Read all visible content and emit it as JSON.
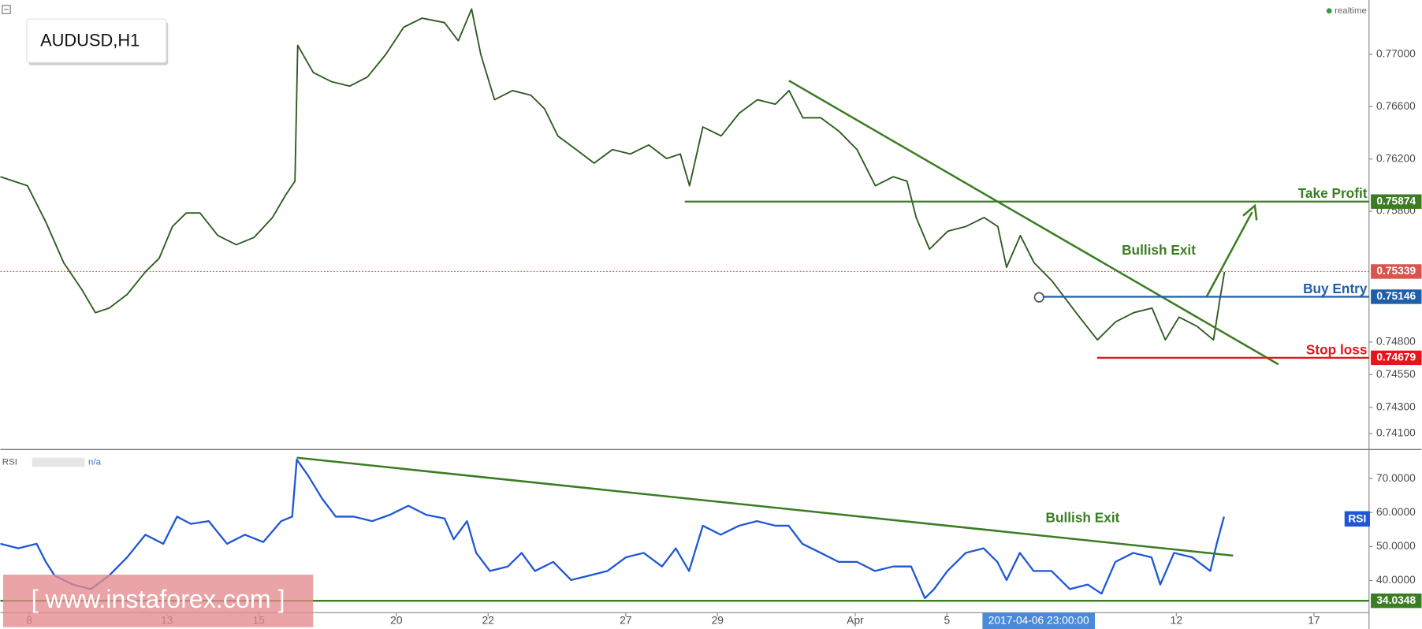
{
  "title": "AUDUSD,H1",
  "status": "realtime",
  "watermark": "[ www.instaforex.com ]",
  "chart_data": [
    {
      "type": "line",
      "color": "#2b5a1e",
      "xlim": [
        -0.63,
        29.2
      ],
      "ylim": [
        0.73984,
        0.77416
      ],
      "yticks": [
        {
          "value": 0.77,
          "label": "0.77000"
        },
        {
          "value": 0.766,
          "label": "0.76600"
        },
        {
          "value": 0.762,
          "label": "0.76200"
        },
        {
          "value": 0.758,
          "label": "0.75800"
        },
        {
          "value": 0.748,
          "label": "0.74800"
        },
        {
          "value": 0.7455,
          "label": "0.74550"
        },
        {
          "value": 0.743,
          "label": "0.74300"
        },
        {
          "value": 0.741,
          "label": "0.74100"
        }
      ],
      "x": [
        -0.63,
        -0.04,
        0.36,
        0.75,
        1.15,
        1.44,
        1.74,
        2.13,
        2.53,
        2.83,
        3.12,
        3.42,
        3.72,
        4.11,
        4.51,
        4.9,
        5.3,
        5.59,
        5.79,
        5.85,
        6.19,
        6.58,
        6.98,
        7.37,
        7.77,
        8.16,
        8.56,
        9.05,
        9.35,
        9.64,
        9.84,
        10.14,
        10.53,
        10.93,
        11.23,
        11.52,
        11.92,
        12.31,
        12.71,
        13.1,
        13.5,
        13.89,
        14.19,
        14.39,
        14.68,
        15.08,
        15.47,
        15.87,
        16.26,
        16.56,
        16.86,
        17.25,
        17.65,
        18.04,
        18.44,
        18.83,
        19.13,
        19.33,
        19.62,
        20.02,
        20.41,
        20.81,
        21.11,
        21.3,
        21.6,
        21.9,
        22.29,
        22.59,
        22.89,
        23.28,
        23.68,
        24.07,
        24.47,
        24.76,
        25.06,
        25.45,
        25.81,
        25.95,
        26.05
      ],
      "values": [
        0.76064,
        0.75995,
        0.75718,
        0.75406,
        0.75198,
        0.75024,
        0.75059,
        0.75163,
        0.75336,
        0.7544,
        0.75683,
        0.75787,
        0.75787,
        0.75614,
        0.75544,
        0.756,
        0.75752,
        0.75926,
        0.7603,
        0.77069,
        0.76861,
        0.76792,
        0.76757,
        0.76827,
        0.77,
        0.77208,
        0.77277,
        0.77243,
        0.77104,
        0.77347,
        0.77,
        0.76653,
        0.76723,
        0.76688,
        0.76584,
        0.76376,
        0.76272,
        0.76168,
        0.76272,
        0.76238,
        0.76307,
        0.76203,
        0.76238,
        0.75995,
        0.76445,
        0.76376,
        0.76549,
        0.76653,
        0.76619,
        0.76723,
        0.76515,
        0.76515,
        0.76411,
        0.76272,
        0.75995,
        0.76064,
        0.7603,
        0.75752,
        0.7551,
        0.75648,
        0.75683,
        0.75752,
        0.75683,
        0.75371,
        0.75614,
        0.75406,
        0.75267,
        0.75128,
        0.7499,
        0.74816,
        0.74955,
        0.75024,
        0.75059,
        0.74816,
        0.7499,
        0.7492,
        0.74816,
        0.75128,
        0.75336
      ],
      "levels": [
        {
          "label": "Take Profit",
          "value": 0.75874,
          "color": "#3b7d23"
        },
        {
          "label": "Buy Entry",
          "value": 0.75146,
          "color": "#1f5fa8"
        },
        {
          "label": "Stop loss",
          "value": 0.74679,
          "color": "#e8141b"
        }
      ],
      "last_price": 0.75339,
      "last_price_color": "#d9544a",
      "annotation": "Bullish Exit"
    },
    {
      "type": "line",
      "color": "#1f56d6",
      "indicator": "RSI",
      "status": "n/a",
      "xlim": [
        -0.63,
        29.2
      ],
      "ylim": [
        30.8,
        78.27
      ],
      "xticks": [
        {
          "value": 0,
          "label": "8"
        },
        {
          "value": 3,
          "label": "13"
        },
        {
          "value": 5,
          "label": "15"
        },
        {
          "value": 8,
          "label": "20"
        },
        {
          "value": 10,
          "label": "22"
        },
        {
          "value": 13,
          "label": "27"
        },
        {
          "value": 15,
          "label": "29"
        },
        {
          "value": 18,
          "label": "Apr"
        },
        {
          "value": 20,
          "label": "5"
        },
        {
          "value": 25,
          "label": "12"
        },
        {
          "value": 28,
          "label": "17"
        }
      ],
      "yticks": [
        {
          "value": 70,
          "label": "70.0000"
        },
        {
          "value": 60,
          "label": "60.0000"
        },
        {
          "value": 50,
          "label": "50.0000"
        },
        {
          "value": 40,
          "label": "40.0000"
        }
      ],
      "x": [
        -0.63,
        -0.24,
        0.16,
        0.36,
        0.55,
        0.95,
        1.34,
        1.74,
        2.13,
        2.53,
        2.92,
        3.22,
        3.52,
        3.91,
        4.31,
        4.7,
        5.1,
        5.49,
        5.73,
        5.83,
        6.08,
        6.38,
        6.68,
        7.07,
        7.47,
        7.86,
        8.26,
        8.65,
        9.05,
        9.25,
        9.54,
        9.74,
        10.04,
        10.43,
        10.73,
        11.02,
        11.42,
        11.81,
        12.21,
        12.6,
        13,
        13.39,
        13.79,
        14.09,
        14.38,
        14.68,
        15.07,
        15.47,
        15.86,
        16.26,
        16.55,
        16.85,
        17.25,
        17.64,
        18.04,
        18.43,
        18.83,
        19.22,
        19.52,
        19.72,
        20.01,
        20.41,
        20.8,
        21.1,
        21.3,
        21.59,
        21.89,
        22.28,
        22.68,
        23.07,
        23.37,
        23.67,
        24.06,
        24.46,
        24.65,
        24.95,
        25.35,
        25.74,
        25.88,
        26.04
      ],
      "values": [
        50.8,
        49.47,
        50.8,
        45.47,
        41.47,
        38.8,
        37.47,
        41.47,
        46.8,
        53.47,
        50.8,
        58.8,
        56.67,
        57.47,
        50.8,
        53.47,
        51.33,
        57.47,
        58.8,
        75.6,
        70.8,
        64.13,
        58.8,
        58.8,
        57.47,
        59.33,
        62,
        59.33,
        58.27,
        52.13,
        57.47,
        48.13,
        42.8,
        44.13,
        48.13,
        42.8,
        45.47,
        40.13,
        41.47,
        42.8,
        46.8,
        48.13,
        44.13,
        49.47,
        42.8,
        56.13,
        53.47,
        56.13,
        57.47,
        56.13,
        56.13,
        50.8,
        48.13,
        45.47,
        45.47,
        42.8,
        44.13,
        44.13,
        34.8,
        37.47,
        42.8,
        48.13,
        49.47,
        45.47,
        40.13,
        48.13,
        42.8,
        42.8,
        37.47,
        38.8,
        36.13,
        45.47,
        48.13,
        46.8,
        38.8,
        48.13,
        46.8,
        42.8,
        50.8,
        58.8
      ],
      "levels": [
        {
          "value": 34.0348,
          "color": "#3b7d23"
        }
      ],
      "annotation": "Bullish Exit",
      "crosshair": {
        "x": 22,
        "label": "2017-04-06 23:00:00"
      }
    }
  ]
}
